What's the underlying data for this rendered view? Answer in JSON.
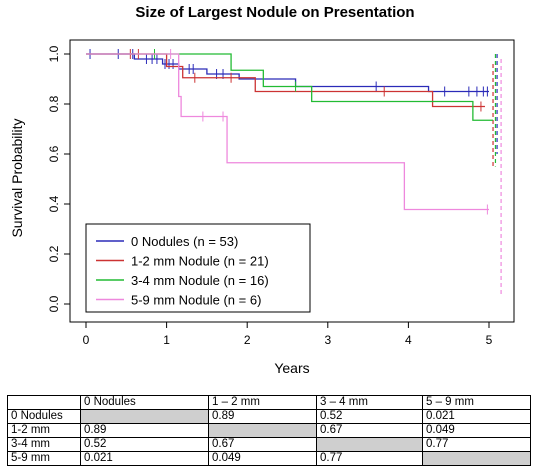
{
  "chart_data": {
    "type": "line",
    "title": "Size of Largest Nodule on Presentation",
    "xlabel": "Years",
    "ylabel": "Survival Probability",
    "xlim": [
      0,
      5.15
    ],
    "ylim": [
      0,
      1.0
    ],
    "x_ticks": [
      0,
      1,
      2,
      3,
      4,
      5
    ],
    "x_tick_labels": [
      "0",
      "1",
      "2",
      "3",
      "4",
      "5"
    ],
    "y_ticks": [
      0.0,
      0.2,
      0.4,
      0.6,
      0.8,
      1.0
    ],
    "y_tick_labels": [
      "0.0",
      "0.2",
      "0.4",
      "0.6",
      "0.8",
      "1.0"
    ],
    "grid": false,
    "legend_position": "bottom-left",
    "series": [
      {
        "name": "0 Nodules (n = 53)",
        "color": "#2b2bb8",
        "steps": [
          [
            0,
            1.0
          ],
          [
            0.6,
            0.98
          ],
          [
            0.95,
            0.96
          ],
          [
            1.15,
            0.94
          ],
          [
            1.5,
            0.92
          ],
          [
            1.9,
            0.9
          ],
          [
            2.6,
            0.87
          ],
          [
            4.25,
            0.85
          ],
          [
            5.0,
            0.85
          ]
        ],
        "censors": [
          [
            0.05,
            1.0
          ],
          [
            0.4,
            1.0
          ],
          [
            0.58,
            1.0
          ],
          [
            0.75,
            0.98
          ],
          [
            0.82,
            0.98
          ],
          [
            0.88,
            0.98
          ],
          [
            0.98,
            0.96
          ],
          [
            1.03,
            0.96
          ],
          [
            1.08,
            0.96
          ],
          [
            1.28,
            0.94
          ],
          [
            1.33,
            0.94
          ],
          [
            1.62,
            0.92
          ],
          [
            1.7,
            0.92
          ],
          [
            3.6,
            0.87
          ],
          [
            4.45,
            0.85
          ],
          [
            4.75,
            0.85
          ],
          [
            4.85,
            0.85
          ],
          [
            4.93,
            0.85
          ],
          [
            4.98,
            0.85
          ]
        ],
        "ci_x": 5.1,
        "ci": [
          0.6,
          1.0
        ]
      },
      {
        "name": "1-2 mm Nodule (n = 21)",
        "color": "#cc3333",
        "steps": [
          [
            0,
            1.0
          ],
          [
            1.0,
            0.95
          ],
          [
            1.2,
            0.905
          ],
          [
            2.1,
            0.85
          ],
          [
            4.3,
            0.79
          ],
          [
            4.95,
            0.79
          ]
        ],
        "censors": [
          [
            0.55,
            1.0
          ],
          [
            0.65,
            1.0
          ],
          [
            1.35,
            0.905
          ],
          [
            1.8,
            0.905
          ],
          [
            3.7,
            0.85
          ],
          [
            4.9,
            0.79
          ]
        ],
        "ci_x": 5.05,
        "ci": [
          0.55,
          0.96
        ]
      },
      {
        "name": "3-4 mm Nodule (n = 16)",
        "color": "#22bb33",
        "steps": [
          [
            0,
            1.0
          ],
          [
            1.8,
            0.935
          ],
          [
            2.2,
            0.87
          ],
          [
            2.8,
            0.81
          ],
          [
            4.8,
            0.735
          ],
          [
            5.05,
            0.735
          ]
        ],
        "censors": [
          [
            0.85,
            1.0
          ],
          [
            2.6,
            0.87
          ]
        ],
        "ci_x": 5.08,
        "ci": [
          0.55,
          1.0
        ]
      },
      {
        "name": "5-9 mm Nodule (n = 6)",
        "color": "#ee88dd",
        "steps": [
          [
            0,
            1.0
          ],
          [
            1.15,
            0.83
          ],
          [
            1.18,
            0.75
          ],
          [
            1.75,
            0.565
          ],
          [
            3.95,
            0.378
          ],
          [
            5.0,
            0.378
          ]
        ],
        "censors": [
          [
            1.05,
            1.0
          ],
          [
            1.45,
            0.75
          ],
          [
            1.7,
            0.75
          ],
          [
            4.98,
            0.378
          ]
        ],
        "ci_x": 5.15,
        "ci": [
          0.04,
          0.98
        ]
      }
    ]
  },
  "table": {
    "columns": [
      "",
      "0 Nodules",
      "1 – 2 mm",
      "3 – 4 mm",
      "5 – 9 mm"
    ],
    "rows": [
      {
        "label": "0 Nodules",
        "cells": [
          "",
          "0.89",
          "0.52",
          "0.021"
        ],
        "diag": 0
      },
      {
        "label": "1-2 mm",
        "cells": [
          "0.89",
          "",
          "0.67",
          "0.049"
        ],
        "diag": 1
      },
      {
        "label": "3-4 mm",
        "cells": [
          "0.52",
          "0.67",
          "",
          "0.77"
        ],
        "diag": 2
      },
      {
        "label": "5-9 mm",
        "cells": [
          "0.021",
          "0.049",
          "0.77",
          ""
        ],
        "diag": 3
      }
    ]
  }
}
